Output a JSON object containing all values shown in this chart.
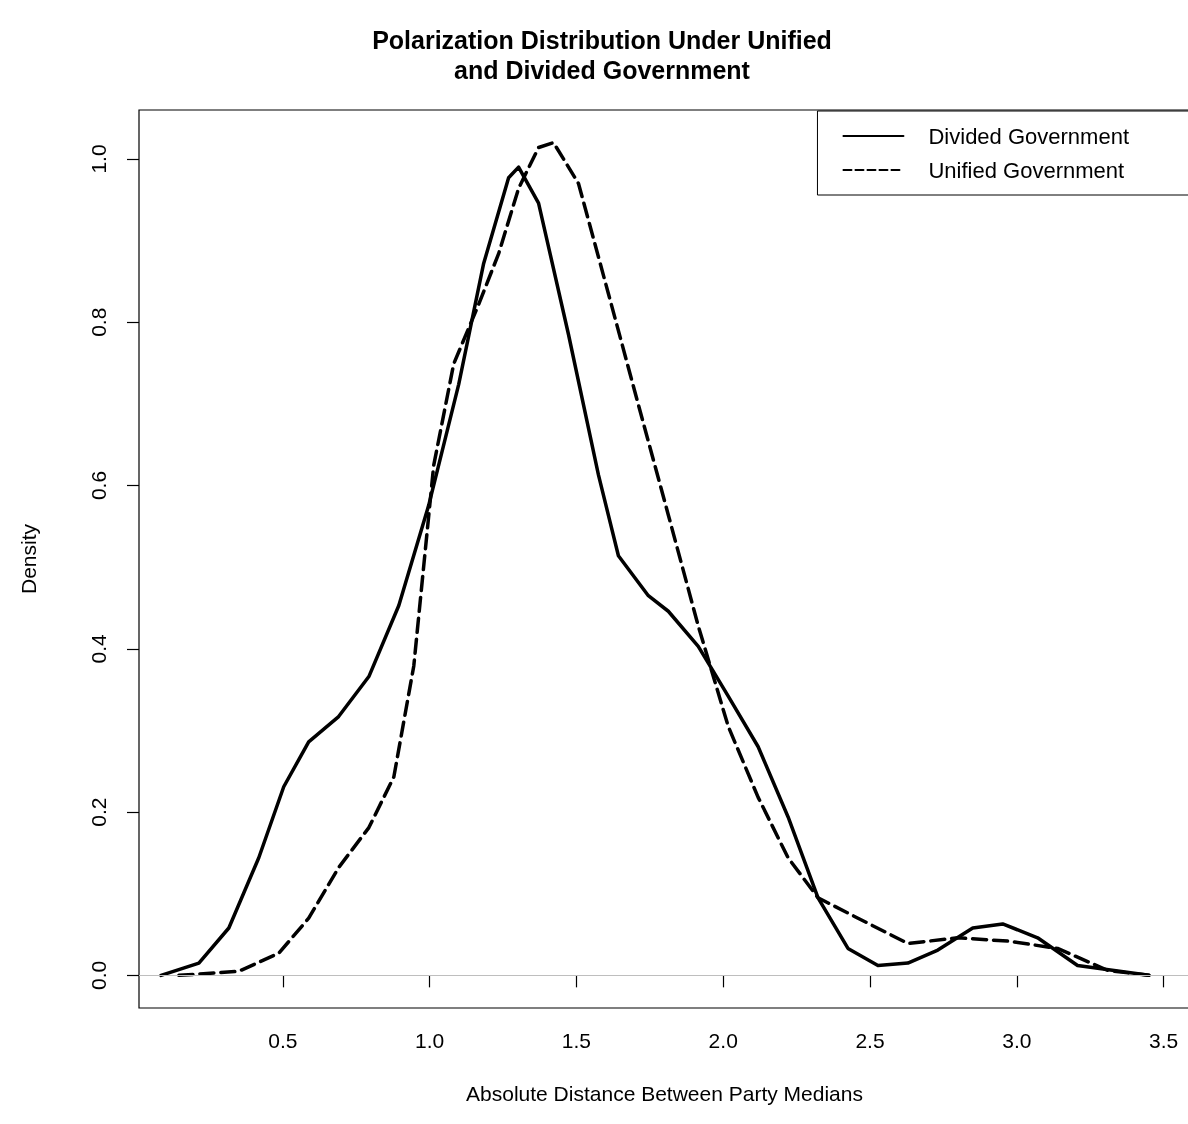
{
  "chart_data": {
    "type": "line",
    "title": "Polarization Distribution Under Unified\nand Divided Government",
    "xlabel": "Absolute Distance Between Party Medians",
    "ylabel": "Density",
    "xlim": [
      0.01,
      3.59
    ],
    "ylim": [
      -0.04,
      1.06
    ],
    "xticks": [
      0.5,
      {
        "value": 1,
        "label": "1.0"
      },
      1.5,
      {
        "value": 2,
        "label": "2.0"
      },
      2.5,
      {
        "value": 3,
        "label": "3.0"
      },
      3.5
    ],
    "yticks": [
      {
        "value": 0,
        "label": "0.0"
      },
      0.2,
      0.4,
      0.6,
      0.8,
      {
        "value": 1,
        "label": "1.0"
      }
    ],
    "grid": false,
    "legend": "top right",
    "marker": "none",
    "ref_lines": [
      {
        "axis": "y",
        "value": 0,
        "color": "#bebebe"
      }
    ],
    "series": [
      {
        "name": "Divided Government",
        "color": "#000000",
        "line_style": "solid",
        "x": [
          0.085,
          0.214,
          0.316,
          0.418,
          0.503,
          0.588,
          0.69,
          0.793,
          0.895,
          0.997,
          1.099,
          1.184,
          1.269,
          1.303,
          1.371,
          1.473,
          1.575,
          1.643,
          1.745,
          1.813,
          1.915,
          2.017,
          2.119,
          2.221,
          2.323,
          2.425,
          2.527,
          2.629,
          2.731,
          2.85,
          2.952,
          3.071,
          3.207,
          3.45
        ],
        "values": [
          0,
          0.015,
          0.058,
          0.144,
          0.231,
          0.286,
          0.317,
          0.366,
          0.453,
          0.576,
          0.724,
          0.872,
          0.977,
          0.99,
          0.946,
          0.785,
          0.613,
          0.514,
          0.465,
          0.446,
          0.403,
          0.342,
          0.28,
          0.194,
          0.095,
          0.033,
          0.012,
          0.015,
          0.031,
          0.058,
          0.063,
          0.046,
          0.012,
          0
        ]
      },
      {
        "name": "Unified Government",
        "color": "#000000",
        "line_style": "dashed",
        "x": [
          0.146,
          0.35,
          0.486,
          0.588,
          0.69,
          0.793,
          0.878,
          0.946,
          1.014,
          1.082,
          1.167,
          1.235,
          1.303,
          1.371,
          1.422,
          1.507,
          1.609,
          1.711,
          1.813,
          1.915,
          2.017,
          2.119,
          2.221,
          2.323,
          2.459,
          2.629,
          2.799,
          2.969,
          3.139,
          3.31,
          3.45
        ],
        "values": [
          0,
          0.005,
          0.027,
          0.07,
          0.132,
          0.181,
          0.243,
          0.379,
          0.625,
          0.749,
          0.822,
          0.884,
          0.964,
          1.014,
          1.02,
          0.97,
          0.835,
          0.699,
          0.564,
          0.428,
          0.305,
          0.218,
          0.144,
          0.095,
          0.07,
          0.039,
          0.046,
          0.042,
          0.033,
          0.006,
          0
        ]
      }
    ]
  }
}
